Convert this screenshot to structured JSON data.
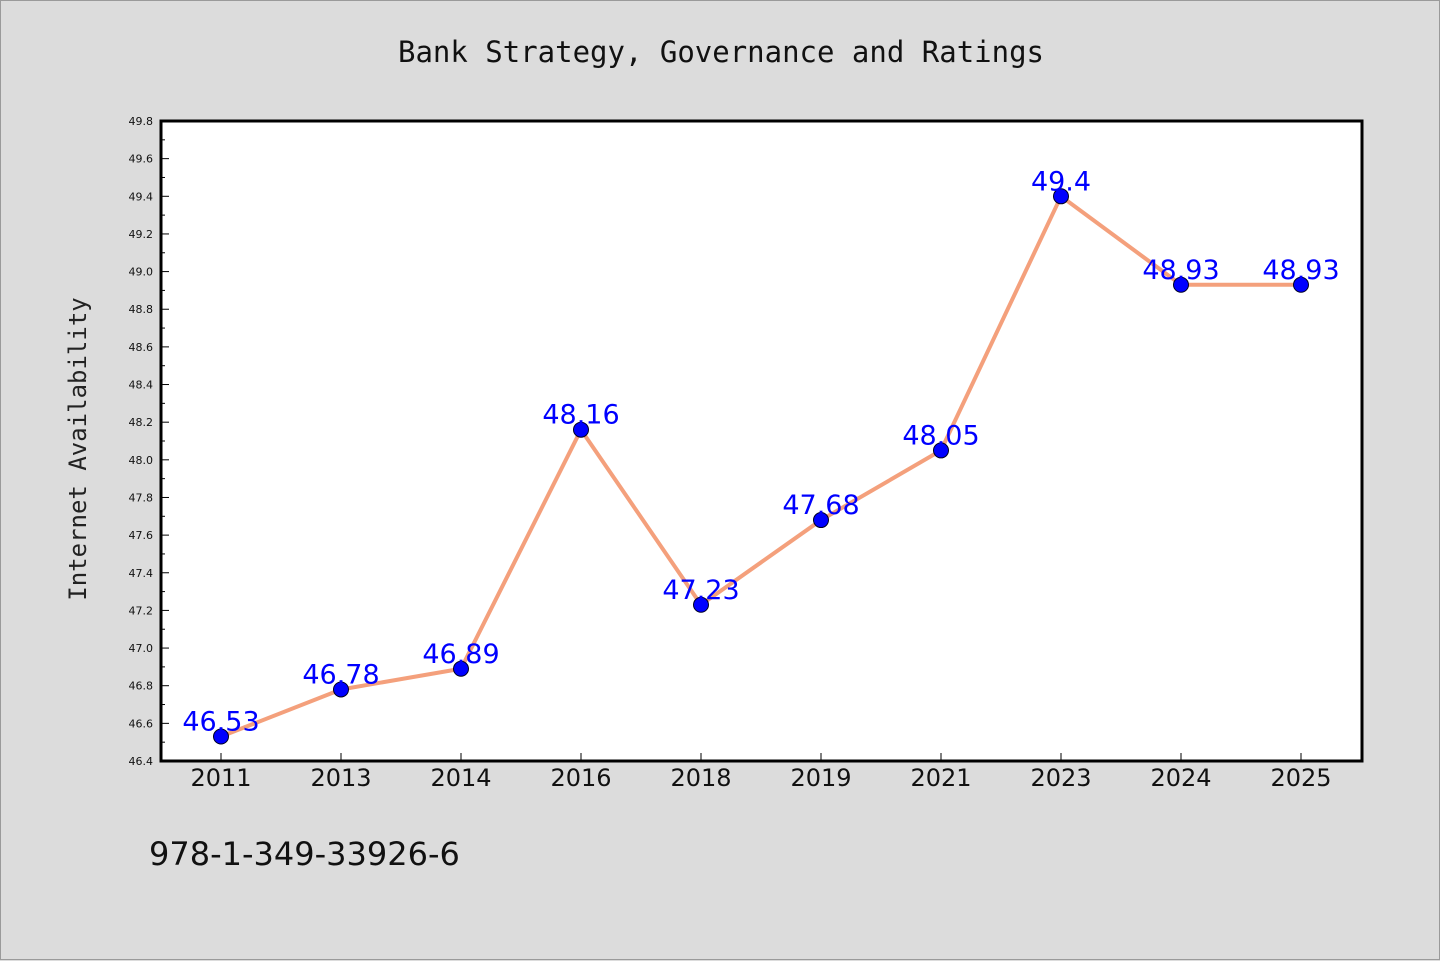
{
  "chart_data": {
    "type": "line",
    "title": "Bank Strategy, Governance and Ratings",
    "xlabel": "",
    "ylabel": "Internet Availability",
    "categories": [
      "2011",
      "2013",
      "2014",
      "2016",
      "2018",
      "2019",
      "2021",
      "2023",
      "2024",
      "2025"
    ],
    "values": [
      46.53,
      46.78,
      46.89,
      48.16,
      47.23,
      47.68,
      48.05,
      49.4,
      48.93,
      48.93
    ],
    "data_labels": [
      "46.53",
      "46.78",
      "46.89",
      "48.16",
      "47.23",
      "47.68",
      "48.05",
      "49.4",
      "48.93",
      "48.93"
    ],
    "ylim": [
      46.4,
      49.8
    ],
    "yticks": [
      "46.4",
      "46.6",
      "46.8",
      "47.0",
      "47.2",
      "47.4",
      "47.6",
      "47.8",
      "48.0",
      "48.2",
      "48.4",
      "48.6",
      "48.8",
      "49.0",
      "49.2",
      "49.4",
      "49.6",
      "49.8"
    ],
    "grid": false,
    "line_color": "#f4a07c",
    "marker_color": "#0000ff",
    "label_color": "#0000ff",
    "plot_background": "#ffffff",
    "figure_background": "#dcdcdc"
  },
  "footer": {
    "isbn": "978-1-349-33926-6"
  }
}
